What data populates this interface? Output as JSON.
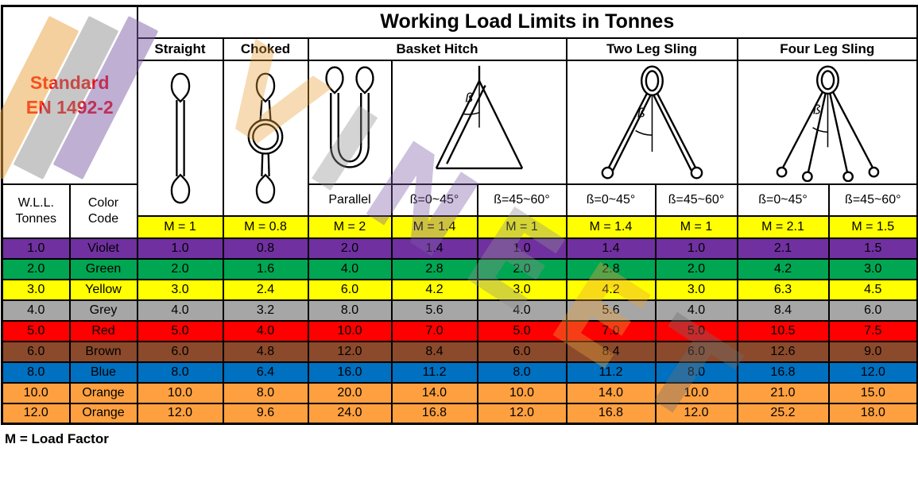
{
  "title": "Working Load Limits in Tonnes",
  "standard": {
    "line1": "Standard",
    "line2": "EN 1492-2"
  },
  "wll_header": [
    "W.L.L.",
    "Tonnes"
  ],
  "color_header": [
    "Color",
    "Code"
  ],
  "groups": [
    {
      "label": "Straight",
      "cols": 1
    },
    {
      "label": "Choked",
      "cols": 1
    },
    {
      "label": "Basket Hitch",
      "cols": 3
    },
    {
      "label": "Two Leg Sling",
      "cols": 2
    },
    {
      "label": "Four Leg Sling",
      "cols": 2
    }
  ],
  "sub_labels": [
    "Parallel",
    "ß=0~45°",
    "ß=45~60°",
    "ß=0~45°",
    "ß=45~60°",
    "ß=0~45°",
    "ß=45~60°"
  ],
  "m_factors": [
    "M = 1",
    "M = 0.8",
    "M = 2",
    "M = 1.4",
    "M = 1",
    "M = 1.4",
    "M = 1",
    "M = 2.1",
    "M = 1.5"
  ],
  "rows": [
    {
      "wll": "1.0",
      "color_name": "Violet",
      "hex": "#7030A0",
      "values": [
        "1.0",
        "0.8",
        "2.0",
        "1.4",
        "1.0",
        "1.4",
        "1.0",
        "2.1",
        "1.5"
      ]
    },
    {
      "wll": "2.0",
      "color_name": "Green",
      "hex": "#00A651",
      "values": [
        "2.0",
        "1.6",
        "4.0",
        "2.8",
        "2.0",
        "2.8",
        "2.0",
        "4.2",
        "3.0"
      ]
    },
    {
      "wll": "3.0",
      "color_name": "Yellow",
      "hex": "#FFFF00",
      "values": [
        "3.0",
        "2.4",
        "6.0",
        "4.2",
        "3.0",
        "4.2",
        "3.0",
        "6.3",
        "4.5"
      ]
    },
    {
      "wll": "4.0",
      "color_name": "Grey",
      "hex": "#A6A6A6",
      "values": [
        "4.0",
        "3.2",
        "8.0",
        "5.6",
        "4.0",
        "5.6",
        "4.0",
        "8.4",
        "6.0"
      ]
    },
    {
      "wll": "5.0",
      "color_name": "Red",
      "hex": "#FF0000",
      "values": [
        "5.0",
        "4.0",
        "10.0",
        "7.0",
        "5.0",
        "7.0",
        "5.0",
        "10.5",
        "7.5"
      ]
    },
    {
      "wll": "6.0",
      "color_name": "Brown",
      "hex": "#8B4A2B",
      "values": [
        "6.0",
        "4.8",
        "12.0",
        "8.4",
        "6.0",
        "8.4",
        "6.0",
        "12.6",
        "9.0"
      ]
    },
    {
      "wll": "8.0",
      "color_name": "Blue",
      "hex": "#0070C0",
      "values": [
        "8.0",
        "6.4",
        "16.0",
        "11.2",
        "8.0",
        "11.2",
        "8.0",
        "16.8",
        "12.0"
      ]
    },
    {
      "wll": "10.0",
      "color_name": "Orange",
      "hex": "#FFA040",
      "values": [
        "10.0",
        "8.0",
        "20.0",
        "14.0",
        "10.0",
        "14.0",
        "10.0",
        "21.0",
        "15.0"
      ]
    },
    {
      "wll": "12.0",
      "color_name": "Orange",
      "hex": "#FFA040",
      "values": [
        "12.0",
        "9.6",
        "24.0",
        "16.8",
        "12.0",
        "16.8",
        "12.0",
        "25.2",
        "18.0"
      ]
    }
  ],
  "footer": "M = Load Factor",
  "watermark": {
    "text": "VINEET",
    "colors": [
      "#E8A23C",
      "#8F8F8F",
      "#7E5FA8",
      "#8F8F8F",
      "#E8A23C",
      "#6E6E6E"
    ]
  },
  "chart_data": {
    "type": "table",
    "title": "Working Load Limits in Tonnes",
    "standard": "EN 1492-2",
    "load_factor_note": "M = Load Factor",
    "columns": [
      "W.L.L. Tonnes",
      "Color Code",
      "Straight (M = 1)",
      "Choked (M = 0.8)",
      "Basket Hitch Parallel (M = 2)",
      "Basket Hitch ß=0~45° (M = 1.4)",
      "Basket Hitch ß=45~60° (M = 1)",
      "Two Leg Sling ß=0~45° (M = 1.4)",
      "Two Leg Sling ß=45~60° (M = 1)",
      "Four Leg Sling ß=0~45° (M = 2.1)",
      "Four Leg Sling ß=45~60° (M = 1.5)"
    ],
    "rows": [
      [
        1.0,
        "Violet",
        1.0,
        0.8,
        2.0,
        1.4,
        1.0,
        1.4,
        1.0,
        2.1,
        1.5
      ],
      [
        2.0,
        "Green",
        2.0,
        1.6,
        4.0,
        2.8,
        2.0,
        2.8,
        2.0,
        4.2,
        3.0
      ],
      [
        3.0,
        "Yellow",
        3.0,
        2.4,
        6.0,
        4.2,
        3.0,
        4.2,
        3.0,
        6.3,
        4.5
      ],
      [
        4.0,
        "Grey",
        4.0,
        3.2,
        8.0,
        5.6,
        4.0,
        5.6,
        4.0,
        8.4,
        6.0
      ],
      [
        5.0,
        "Red",
        5.0,
        4.0,
        10.0,
        7.0,
        5.0,
        7.0,
        5.0,
        10.5,
        7.5
      ],
      [
        6.0,
        "Brown",
        6.0,
        4.8,
        12.0,
        8.4,
        6.0,
        8.4,
        6.0,
        12.6,
        9.0
      ],
      [
        8.0,
        "Blue",
        8.0,
        6.4,
        16.0,
        11.2,
        8.0,
        11.2,
        8.0,
        16.8,
        12.0
      ],
      [
        10.0,
        "Orange",
        10.0,
        8.0,
        20.0,
        14.0,
        10.0,
        14.0,
        10.0,
        21.0,
        15.0
      ],
      [
        12.0,
        "Orange",
        12.0,
        9.6,
        24.0,
        16.8,
        12.0,
        16.8,
        12.0,
        25.2,
        18.0
      ]
    ]
  }
}
